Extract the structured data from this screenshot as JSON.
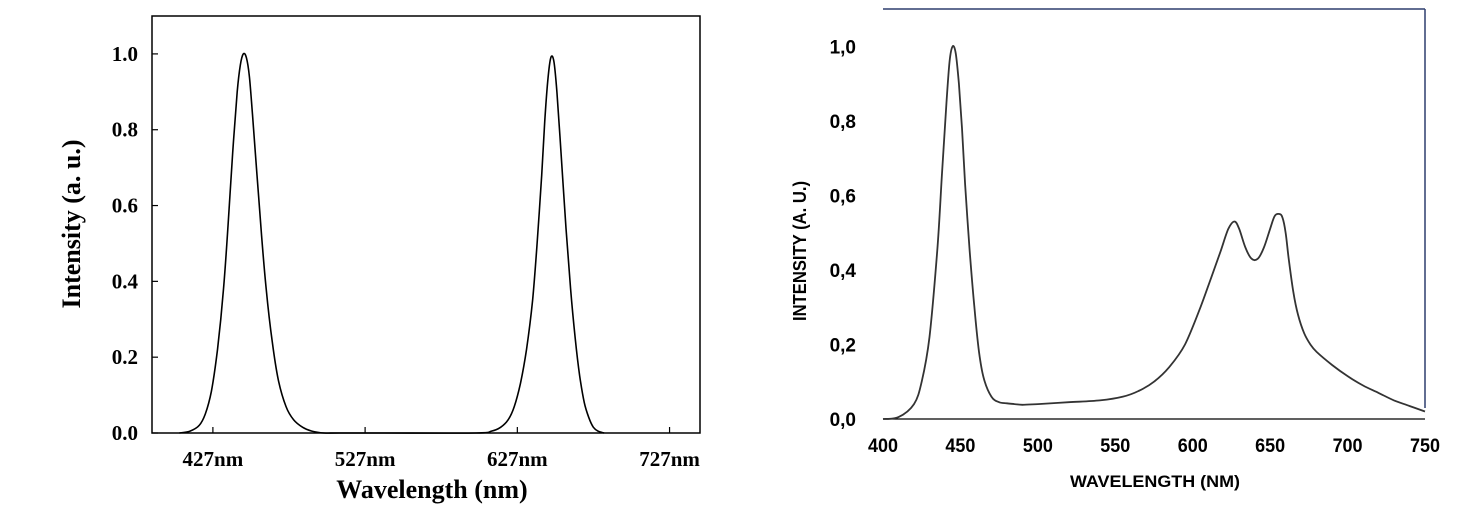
{
  "chart_data": [
    {
      "type": "line",
      "title": "",
      "xlabel": "Wavelength (nm)",
      "ylabel": "Intensity (a. u.)",
      "xlim": [
        387,
        747
      ],
      "ylim": [
        0,
        1.1
      ],
      "x_ticks": [
        427,
        527,
        627,
        727
      ],
      "x_tick_labels": [
        "427nm",
        "527nm",
        "627nm",
        "727nm"
      ],
      "y_ticks": [
        0.0,
        0.2,
        0.4,
        0.6,
        0.8,
        1.0
      ],
      "y_tick_labels": [
        "0.0",
        "0.2",
        "0.4",
        "0.6",
        "0.8",
        "1.0"
      ],
      "grid": false,
      "series": [
        {
          "x": [
            405,
            412,
            418,
            422,
            426,
            430,
            434,
            437,
            440,
            443,
            445,
            447,
            449,
            451,
            453,
            456,
            459,
            462,
            466,
            470,
            475,
            480,
            486,
            492,
            500,
            510,
            540,
            600,
            610,
            616,
            621,
            625,
            629,
            633,
            637,
            640,
            643,
            645,
            647,
            649,
            651,
            653,
            656,
            659,
            662,
            665,
            668,
            671,
            674,
            677,
            680,
            684
          ],
          "y": [
            0.0,
            0.005,
            0.02,
            0.05,
            0.11,
            0.22,
            0.38,
            0.55,
            0.74,
            0.9,
            0.97,
            1.0,
            0.99,
            0.94,
            0.84,
            0.68,
            0.52,
            0.38,
            0.24,
            0.14,
            0.07,
            0.035,
            0.015,
            0.005,
            0.0,
            0.0,
            0.0,
            0.0,
            0.005,
            0.015,
            0.035,
            0.07,
            0.13,
            0.22,
            0.35,
            0.5,
            0.68,
            0.82,
            0.93,
            0.99,
            0.98,
            0.9,
            0.72,
            0.54,
            0.38,
            0.25,
            0.15,
            0.08,
            0.04,
            0.015,
            0.005,
            0.0
          ]
        }
      ]
    },
    {
      "type": "line",
      "title": "",
      "xlabel": "WAVELENGTH (NM)",
      "ylabel": "INTENSITY  (A. U.)",
      "xlim": [
        400,
        750
      ],
      "ylim": [
        0,
        1.1
      ],
      "x_ticks": [
        400,
        450,
        500,
        550,
        600,
        650,
        700,
        750
      ],
      "x_tick_labels": [
        "400",
        "450",
        "500",
        "550",
        "600",
        "650",
        "700",
        "750"
      ],
      "y_ticks": [
        0.0,
        0.2,
        0.4,
        0.6,
        0.8,
        1.0
      ],
      "y_tick_labels": [
        "0,0",
        "0,2",
        "0,4",
        "0,6",
        "0,8",
        "1,0"
      ],
      "grid": false,
      "series": [
        {
          "x": [
            400,
            410,
            420,
            425,
            430,
            435,
            438,
            441,
            443,
            445,
            447,
            449,
            451,
            453,
            456,
            459,
            462,
            465,
            470,
            475,
            480,
            485,
            490,
            500,
            520,
            540,
            555,
            565,
            575,
            585,
            595,
            605,
            612,
            618,
            623,
            627,
            630,
            634,
            638,
            642,
            646,
            650,
            653,
            656,
            658,
            660,
            662,
            665,
            668,
            672,
            676,
            680,
            690,
            700,
            710,
            720,
            730,
            740,
            750
          ],
          "y": [
            0.0,
            0.005,
            0.04,
            0.1,
            0.22,
            0.45,
            0.65,
            0.85,
            0.96,
            1.0,
            0.98,
            0.9,
            0.78,
            0.63,
            0.45,
            0.3,
            0.18,
            0.11,
            0.06,
            0.045,
            0.042,
            0.04,
            0.038,
            0.04,
            0.045,
            0.05,
            0.06,
            0.075,
            0.1,
            0.14,
            0.2,
            0.3,
            0.38,
            0.45,
            0.51,
            0.53,
            0.51,
            0.46,
            0.43,
            0.43,
            0.46,
            0.51,
            0.545,
            0.55,
            0.54,
            0.5,
            0.43,
            0.34,
            0.28,
            0.23,
            0.2,
            0.18,
            0.145,
            0.115,
            0.09,
            0.07,
            0.05,
            0.035,
            0.02
          ]
        }
      ]
    }
  ]
}
